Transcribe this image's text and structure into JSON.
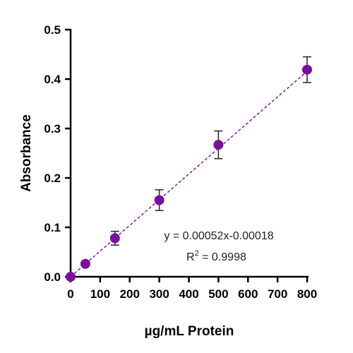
{
  "chart_data": {
    "type": "scatter",
    "title": "",
    "xlabel": "µg/mL Protein",
    "ylabel": "Absorbance",
    "xlim": [
      0,
      800
    ],
    "ylim": [
      0,
      0.5
    ],
    "x_ticks": [
      0,
      100,
      200,
      300,
      400,
      500,
      600,
      700,
      800
    ],
    "y_ticks": [
      0.0,
      0.1,
      0.2,
      0.3,
      0.4,
      0.5
    ],
    "x_tick_labels": [
      "0",
      "100",
      "200",
      "300",
      "400",
      "500",
      "600",
      "700",
      "800"
    ],
    "y_tick_labels": [
      "0.0",
      "0.1",
      "0.2",
      "0.3",
      "0.4",
      "0.5"
    ],
    "grid": false,
    "points": [
      {
        "x": 0,
        "y": 0.0,
        "err": 0.0
      },
      {
        "x": 50,
        "y": 0.026,
        "err": 0.0
      },
      {
        "x": 150,
        "y": 0.078,
        "err": 0.014
      },
      {
        "x": 300,
        "y": 0.155,
        "err": 0.021
      },
      {
        "x": 500,
        "y": 0.267,
        "err": 0.028
      },
      {
        "x": 800,
        "y": 0.419,
        "err": 0.026
      }
    ],
    "fit": {
      "type": "linear",
      "slope": 0.00052,
      "intercept": -0.00018
    },
    "equation_text": "y = 0.00052x-0.00018",
    "r2_label": "R",
    "r2_exponent": "2",
    "r2_value_text": " = 0.9998",
    "colors": {
      "marker": "#7a0f9c",
      "fit_line": "#8a1fae",
      "error_bar": "#222222",
      "axis": "#000000"
    }
  }
}
